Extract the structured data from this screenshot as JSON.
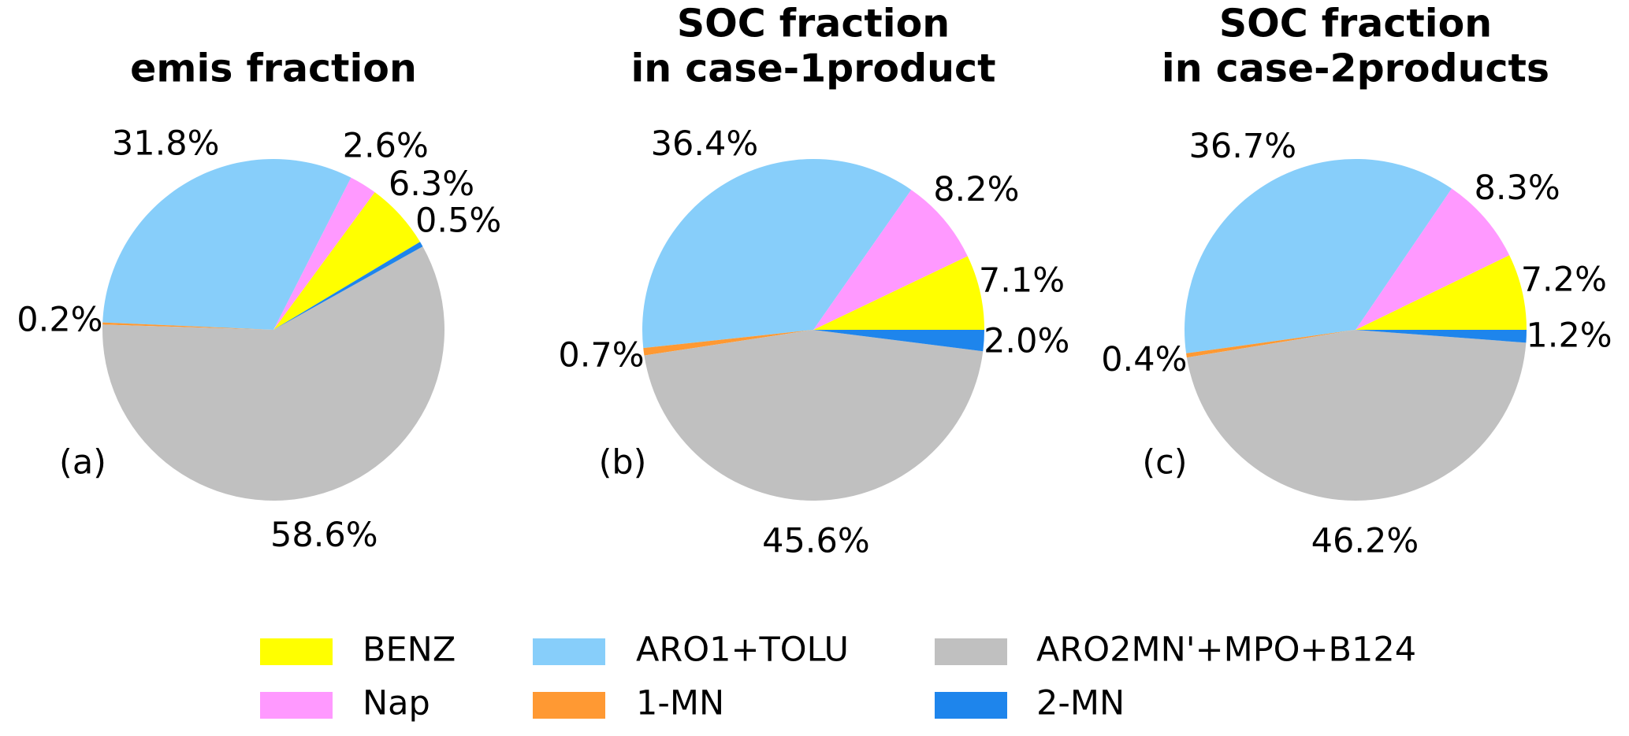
{
  "chart_data": [
    {
      "type": "pie",
      "title": [
        "emis fraction"
      ],
      "panel_label": "(a)",
      "startangle": 31,
      "categories": [
        "BENZ",
        "Nap",
        "ARO1+TOLU",
        "1-MN",
        "ARO2MN'+MPO+B124",
        "2-MN"
      ],
      "colors": [
        "#ffff00",
        "#ff99ff",
        "#87cefa",
        "#ff9933",
        "#c0c0c0",
        "#1e85ec"
      ],
      "values": [
        6.3,
        2.6,
        31.8,
        0.2,
        58.6,
        0.5
      ],
      "value_labels": [
        "6.3%",
        "2.6%",
        "31.8%",
        "0.2%",
        "58.6%",
        "0.5%"
      ]
    },
    {
      "type": "pie",
      "title": [
        "SOC fraction",
        "in case-1product"
      ],
      "panel_label": "(b)",
      "startangle": 0,
      "categories": [
        "BENZ",
        "Nap",
        "ARO1+TOLU",
        "1-MN",
        "ARO2MN'+MPO+B124",
        "2-MN"
      ],
      "colors": [
        "#ffff00",
        "#ff99ff",
        "#87cefa",
        "#ff9933",
        "#c0c0c0",
        "#1e85ec"
      ],
      "values": [
        7.1,
        8.2,
        36.4,
        0.7,
        45.6,
        2.0
      ],
      "value_labels": [
        "7.1%",
        "8.2%",
        "36.4%",
        "0.7%",
        "45.6%",
        "2.0%"
      ]
    },
    {
      "type": "pie",
      "title": [
        "SOC fraction",
        "in case-2products"
      ],
      "panel_label": "(c)",
      "startangle": 0,
      "categories": [
        "BENZ",
        "Nap",
        "ARO1+TOLU",
        "1-MN",
        "ARO2MN'+MPO+B124",
        "2-MN"
      ],
      "colors": [
        "#ffff00",
        "#ff99ff",
        "#87cefa",
        "#ff9933",
        "#c0c0c0",
        "#1e85ec"
      ],
      "values": [
        7.2,
        8.3,
        36.7,
        0.4,
        46.2,
        1.2
      ],
      "value_labels": [
        "7.2%",
        "8.3%",
        "36.7%",
        "0.4%",
        "46.2%",
        "1.2%"
      ]
    }
  ]
}
